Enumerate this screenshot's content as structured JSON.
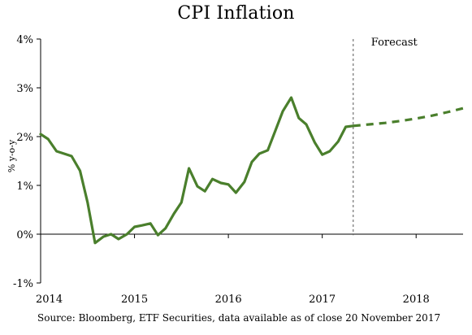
{
  "chart_data": {
    "type": "line",
    "title": "CPI Inflation",
    "ylabel": "% y-o-y",
    "xlabel": "",
    "ylim": [
      -1,
      4
    ],
    "xlim": [
      2014.0,
      2018.5
    ],
    "y_ticks": [
      -1,
      0,
      1,
      2,
      3,
      4
    ],
    "y_tick_labels": [
      "-1%",
      "0%",
      "1%",
      "2%",
      "3%",
      "4%"
    ],
    "x_ticks": [
      2014,
      2015,
      2016,
      2017,
      2018
    ],
    "x_tick_labels": [
      "2014",
      "2015",
      "2016",
      "2017",
      "2018"
    ],
    "grid": false,
    "forecast_start": 2017.33,
    "forecast_label": "Forecast",
    "colors": {
      "line": "#4a7f2c",
      "axis": "#000000",
      "divider": "#555555"
    },
    "series": [
      {
        "style": "solid",
        "x": [
          2014.0,
          2014.08,
          2014.17,
          2014.25,
          2014.33,
          2014.42,
          2014.5,
          2014.58,
          2014.67,
          2014.75,
          2014.83,
          2014.92,
          2015.0,
          2015.08,
          2015.17,
          2015.25,
          2015.33,
          2015.42,
          2015.5,
          2015.58,
          2015.67,
          2015.75,
          2015.83,
          2015.92,
          2016.0,
          2016.08,
          2016.17,
          2016.25,
          2016.33,
          2016.42,
          2016.5,
          2016.58,
          2016.67,
          2016.75,
          2016.83,
          2016.92,
          2017.0,
          2017.08,
          2017.17,
          2017.25,
          2017.33
        ],
        "values": [
          2.05,
          1.95,
          1.7,
          1.65,
          1.6,
          1.3,
          0.65,
          -0.18,
          -0.05,
          0.0,
          -0.1,
          0.0,
          0.15,
          0.18,
          0.22,
          -0.02,
          0.12,
          0.42,
          0.65,
          1.35,
          0.98,
          0.88,
          1.13,
          1.05,
          1.02,
          0.85,
          1.07,
          1.48,
          1.65,
          1.72,
          2.12,
          2.52,
          2.8,
          2.38,
          2.25,
          1.88,
          1.63,
          1.7,
          1.9,
          2.2,
          2.22
        ]
      },
      {
        "style": "dashed",
        "x": [
          2017.33,
          2017.5,
          2017.67,
          2017.83,
          2018.0,
          2018.17,
          2018.33,
          2018.5
        ],
        "values": [
          2.22,
          2.25,
          2.28,
          2.32,
          2.37,
          2.43,
          2.5,
          2.58
        ]
      }
    ]
  },
  "source_note": "Source: Bloomberg, ETF Securities, data available as of close 20 November 2017"
}
